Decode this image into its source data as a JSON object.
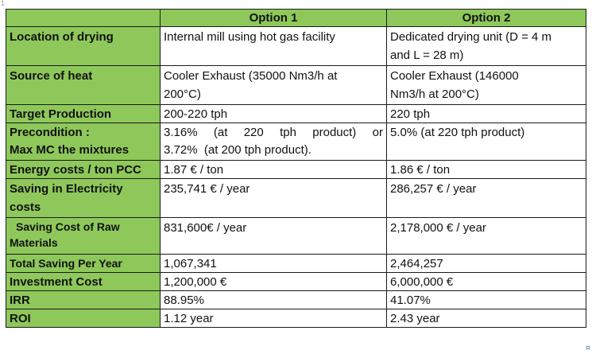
{
  "page": {
    "corner_mark": "1",
    "end_mark": "¤"
  },
  "table": {
    "headers": [
      "",
      "Option 1",
      "Option 2"
    ],
    "rows": [
      {
        "label": "Location of drying",
        "option1": "Internal mill using hot gas facility",
        "option2_lines": [
          "Dedicated drying unit (D = 4 m",
          "and L = 28 m)"
        ]
      },
      {
        "label": "Source of heat",
        "option1_lines": [
          "Cooler Exhaust (35000 Nm3/h at",
          "200°C)"
        ],
        "option2_lines": [
          "Cooler Exhaust (146000",
          "Nm3/h at 200°C)"
        ]
      },
      {
        "label": "Target Production",
        "option1": "200-220 tph",
        "option2": "220 tph"
      },
      {
        "label_lines": [
          "Precondition :",
          "Max MC the mixtures"
        ],
        "option1_line1": [
          "3.16%",
          "(at",
          "220",
          "tph",
          "product)",
          "or"
        ],
        "option1_line2": "3.72%  (at 200 tph product).",
        "option2": "5.0% (at 220 tph product)"
      },
      {
        "label": "Energy costs / ton PCC",
        "option1": "1.87 € / ton",
        "option2": "1.86 € / ton"
      },
      {
        "label_lines": [
          "Saving in Electricity",
          "costs"
        ],
        "option1": "235,741 € / year",
        "option2": "286,257 € / year"
      },
      {
        "label_lines": [
          "Saving Cost of Raw",
          "Materials"
        ],
        "option1": "831,600€ / year",
        "option2": "2,178,000 € / year"
      },
      {
        "label": "Total Saving Per Year",
        "option1": "1,067,341",
        "option2": "2,464,257"
      },
      {
        "label": "Investment Cost",
        "option1": "1,200,000 €",
        "option2": "6,000,000 €"
      },
      {
        "label": "IRR",
        "option1": "88.95%",
        "option2": "41.07%"
      },
      {
        "label": "ROI",
        "option1": "1.12 year",
        "option2": "2.43 year"
      }
    ]
  },
  "colors": {
    "header_fill": "#8ec85a",
    "border": "#1a1a1a",
    "cell_fill": "#ffffff"
  }
}
